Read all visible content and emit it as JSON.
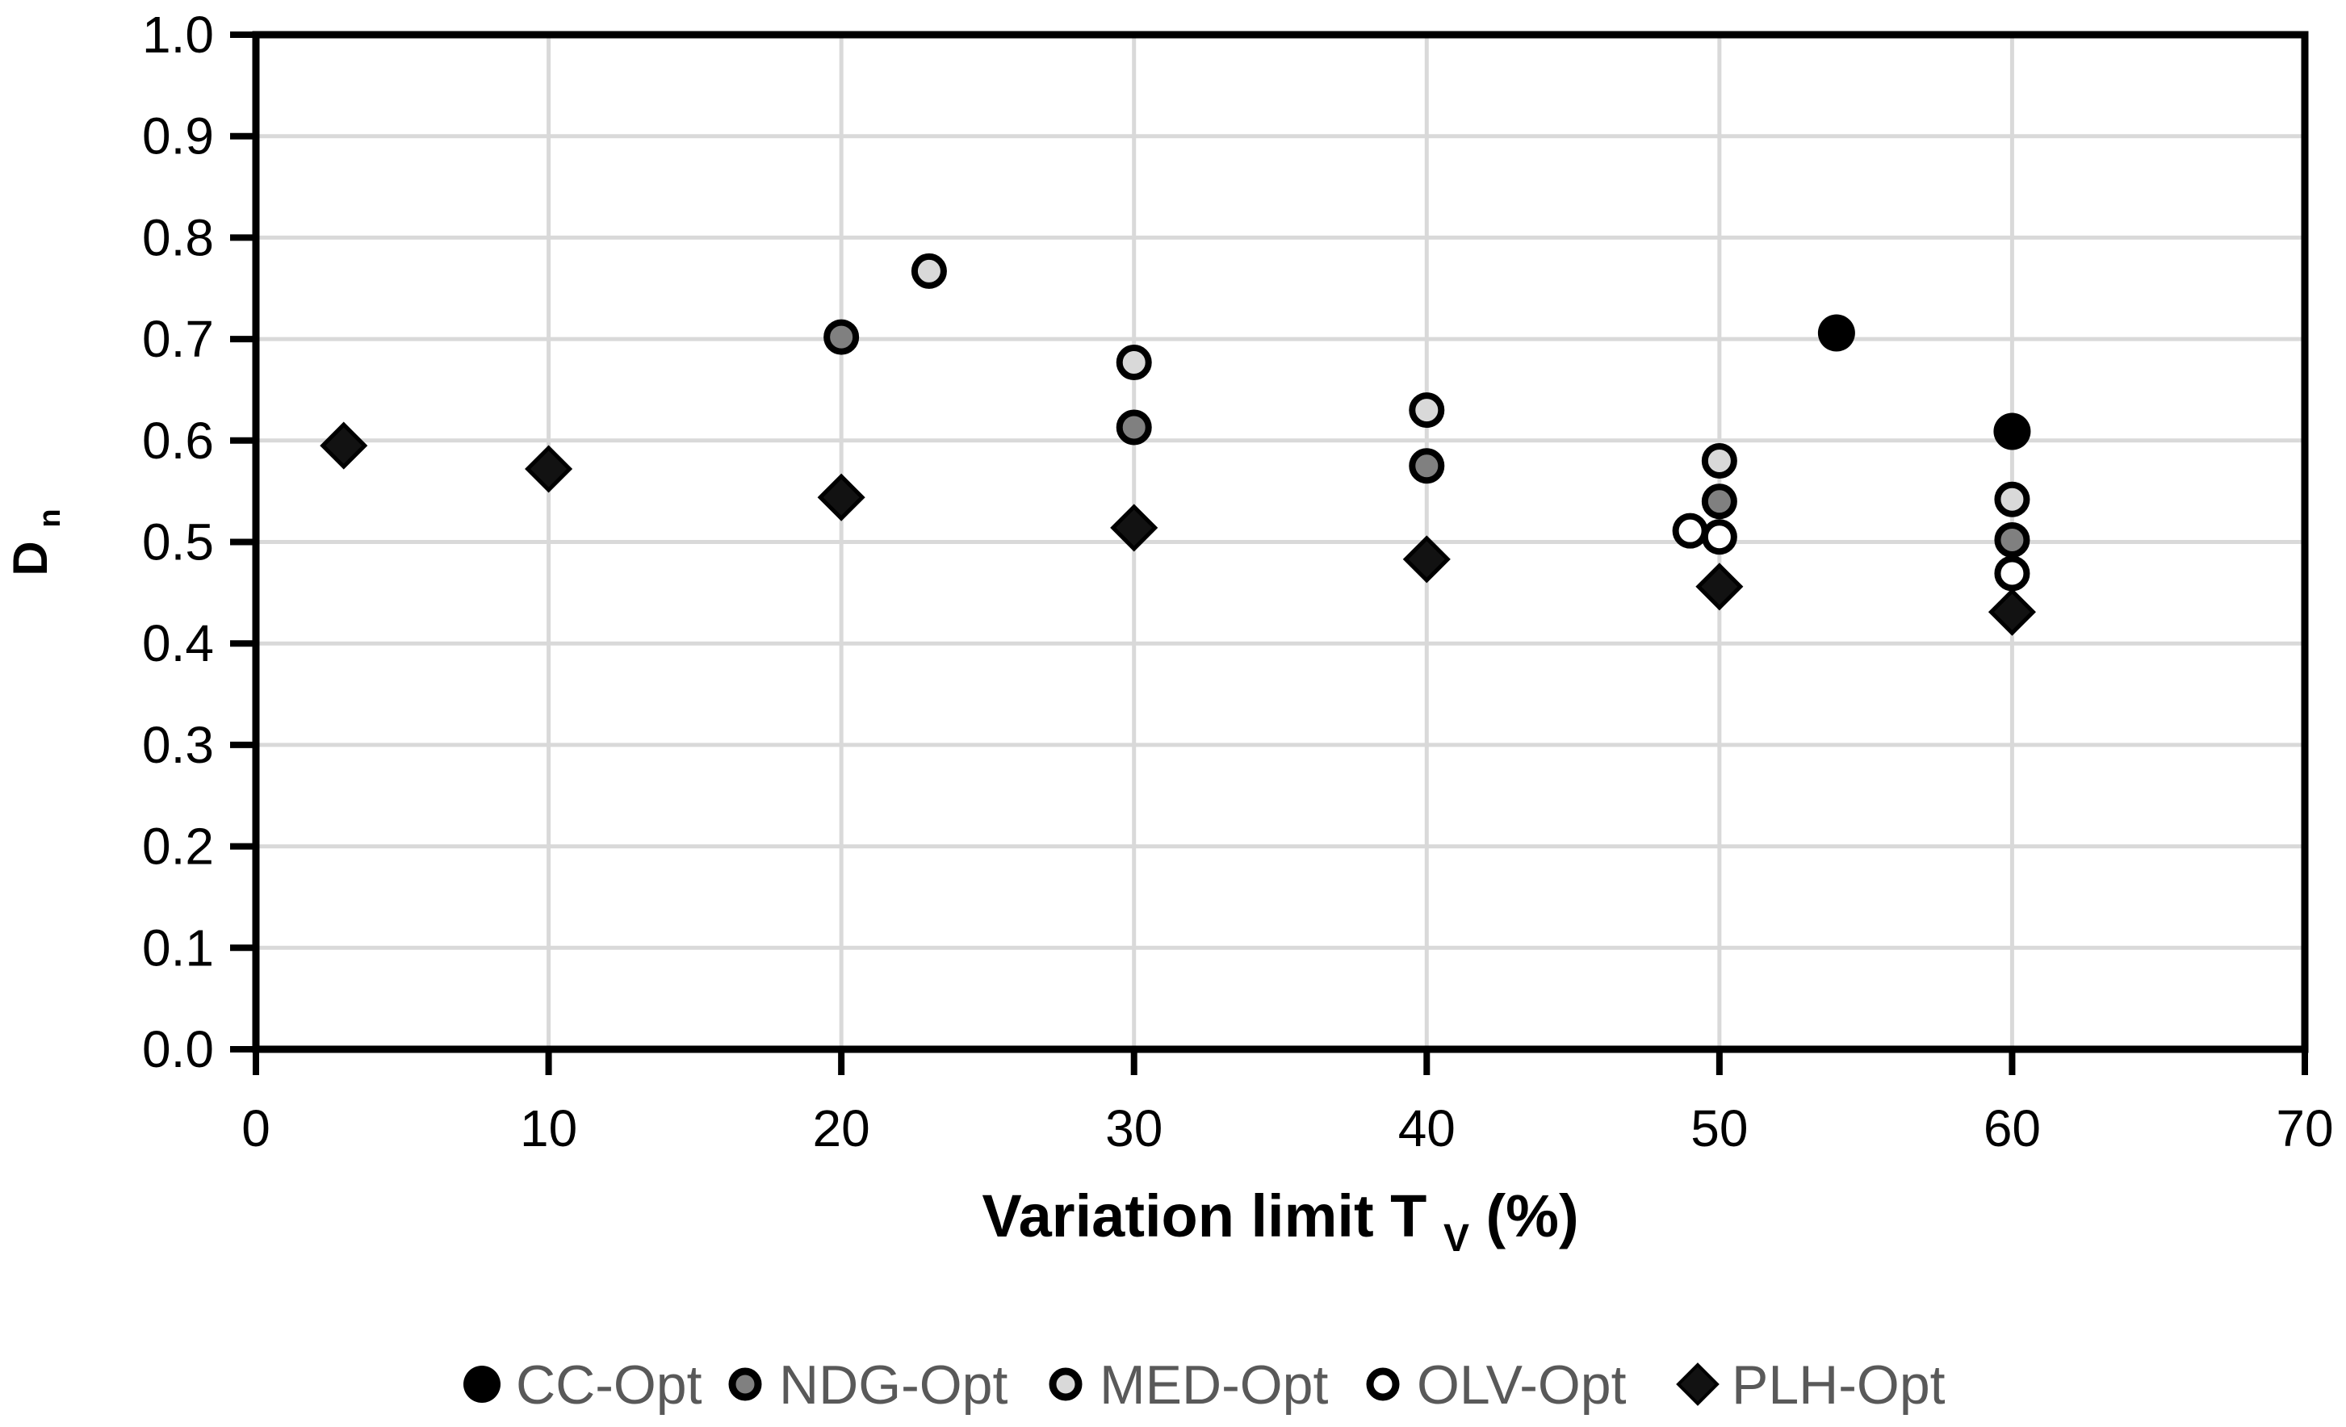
{
  "chart_data": {
    "type": "scatter",
    "title": "",
    "xlabel": {
      "text": "Variation limit T",
      "sub": "V",
      "suffix": " (%)"
    },
    "ylabel": {
      "text": "D",
      "sub": "n"
    },
    "xlim": [
      0,
      70
    ],
    "ylim": [
      0.0,
      1.0
    ],
    "xticks": [
      0,
      10,
      20,
      30,
      40,
      50,
      60,
      70
    ],
    "xtick_labels": [
      "0",
      "10",
      "20",
      "30",
      "40",
      "50",
      "60",
      "70"
    ],
    "yticks": [
      0.0,
      0.1,
      0.2,
      0.3,
      0.4,
      0.5,
      0.6,
      0.7,
      0.8,
      0.9,
      1.0
    ],
    "ytick_labels": [
      "0.0",
      "0.1",
      "0.2",
      "0.3",
      "0.4",
      "0.5",
      "0.6",
      "0.7",
      "0.8",
      "0.9",
      "1.0"
    ],
    "grid": true,
    "legend_position": "bottom",
    "series": [
      {
        "name": "CC-Opt",
        "marker": "circle",
        "fill": "#000000",
        "outline": "#000000",
        "points": [
          [
            54,
            0.706
          ],
          [
            60,
            0.609
          ]
        ]
      },
      {
        "name": "NDG-Opt",
        "marker": "circle",
        "fill": "#808080",
        "outline": "#000000",
        "points": [
          [
            20,
            0.702
          ],
          [
            30,
            0.613
          ],
          [
            40,
            0.575
          ],
          [
            50,
            0.54
          ],
          [
            60,
            0.502
          ]
        ]
      },
      {
        "name": "MED-Opt",
        "marker": "circle",
        "fill": "#D9D9D9",
        "outline": "#000000",
        "points": [
          [
            23,
            0.767
          ],
          [
            30,
            0.677
          ],
          [
            40,
            0.63
          ],
          [
            50,
            0.58
          ],
          [
            60,
            0.542
          ]
        ]
      },
      {
        "name": "OLV-Opt",
        "marker": "circle",
        "fill": "#FFFFFF",
        "outline": "#000000",
        "points": [
          [
            49,
            0.511
          ],
          [
            50,
            0.505
          ],
          [
            60,
            0.469
          ]
        ]
      },
      {
        "name": "PLH-Opt",
        "marker": "diamond",
        "fill": "#121212",
        "outline": "#000000",
        "points": [
          [
            3,
            0.595
          ],
          [
            10,
            0.572
          ],
          [
            20,
            0.544
          ],
          [
            30,
            0.514
          ],
          [
            40,
            0.483
          ],
          [
            50,
            0.456
          ],
          [
            60,
            0.431
          ]
        ]
      }
    ],
    "colors": {
      "plot_background": "#FFFFFF",
      "gridline": "#D9D9D9",
      "axis_frame": "#000000",
      "tick_label": "#000000",
      "axis_title": "#000000",
      "legend_text": "#595959"
    }
  }
}
